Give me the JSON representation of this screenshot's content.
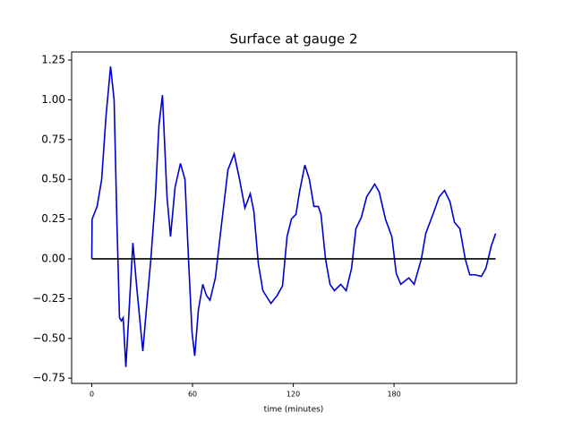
{
  "chart_data": {
    "type": "line",
    "title": "Surface at gauge 2",
    "x_label": "time (minutes)",
    "xlim": [
      -12,
      253
    ],
    "ylim": [
      -0.783,
      1.301
    ],
    "xticks": [
      0,
      60,
      120,
      180
    ],
    "yticks": [
      {
        "value": -0.75,
        "label": "−0.75"
      },
      {
        "value": -0.5,
        "label": "−0.50"
      },
      {
        "value": -0.25,
        "label": "−0.25"
      },
      {
        "value": 0,
        "label": "0.00"
      },
      0.25,
      {
        "value": 0.5,
        "label": "0.50"
      },
      0.75,
      {
        "value": 1,
        "label": "1.00"
      },
      1.25
    ],
    "series": [
      {
        "color": "#0000cc",
        "x": [
          0,
          0.2,
          3.2,
          5.9,
          8.5,
          11.2,
          13.3,
          15,
          16.5,
          17.6,
          18.7,
          20.3,
          22.4,
          24.5,
          26.7,
          30.4,
          32.5,
          35.2,
          37.9,
          40,
          42.1,
          44.8,
          46.9,
          49.6,
          52.8,
          55.5,
          57.6,
          59.7,
          61.3,
          63.5,
          66.1,
          68.3,
          70.4,
          73.6,
          77.3,
          81.1,
          84.8,
          88,
          91.2,
          94.4,
          96.5,
          99.2,
          101.9,
          106.7,
          110.4,
          113.6,
          116.3,
          118.9,
          121.6,
          123.7,
          126.9,
          129.6,
          132.3,
          134.9,
          136.5,
          139.2,
          141.9,
          144.5,
          148.3,
          151.5,
          154.7,
          157.3,
          160.5,
          163.7,
          168.5,
          171.2,
          174.9,
          178.7,
          181.3,
          184,
          188.8,
          192,
          196.3,
          198.9,
          203.2,
          206.9,
          210.1,
          213.3,
          216,
          219.2,
          222.4,
          225.1,
          228.3,
          232,
          234.7,
          237.9,
          240.5
        ],
        "values": [
          0,
          0.25,
          0.33,
          0.5,
          0.9,
          1.21,
          1.0,
          0.22,
          -0.37,
          -0.39,
          -0.37,
          -0.68,
          -0.29,
          0.1,
          -0.17,
          -0.58,
          -0.32,
          0,
          0.39,
          0.84,
          1.03,
          0.39,
          0.14,
          0.45,
          0.6,
          0.5,
          0,
          -0.46,
          -0.61,
          -0.32,
          -0.16,
          -0.23,
          -0.26,
          -0.12,
          0.22,
          0.56,
          0.66,
          0.5,
          0.32,
          0.41,
          0.3,
          -0.03,
          -0.2,
          -0.28,
          -0.23,
          -0.17,
          0.14,
          0.25,
          0.28,
          0.42,
          0.59,
          0.5,
          0.33,
          0.33,
          0.28,
          0,
          -0.16,
          -0.2,
          -0.16,
          -0.2,
          -0.06,
          0.19,
          0.26,
          0.39,
          0.47,
          0.42,
          0.25,
          0.14,
          -0.09,
          -0.16,
          -0.12,
          -0.16,
          0,
          0.16,
          0.28,
          0.39,
          0.43,
          0.36,
          0.23,
          0.19,
          0,
          -0.1,
          -0.1,
          -0.11,
          -0.06,
          0.08,
          0.16
        ]
      },
      {
        "color": "#000000",
        "x": [
          0,
          240.5
        ],
        "values": [
          0,
          0
        ]
      }
    ]
  }
}
